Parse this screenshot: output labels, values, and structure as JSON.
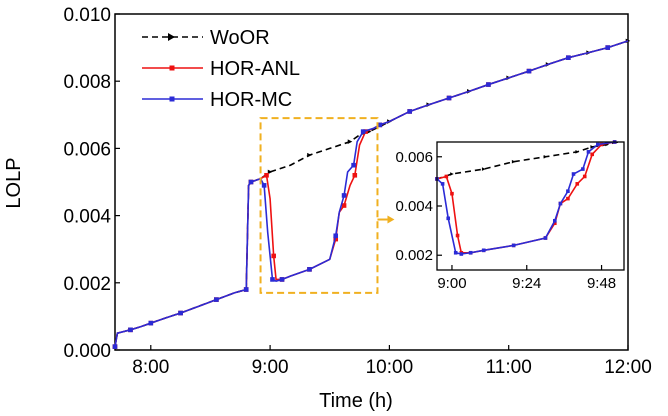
{
  "colors": {
    "woor": "#000000",
    "hor_anl": "#ee1111",
    "hor_mc": "#2b2bd6",
    "zoom_box": "#f0b020"
  },
  "chart_data": [
    {
      "id": "main",
      "type": "line",
      "title": "",
      "xlabel": "Time (h)",
      "ylabel": "LOLP",
      "xlim": [
        7.7,
        12
      ],
      "ylim": [
        0,
        0.01
      ],
      "xticks": [
        8,
        9,
        10,
        11,
        12
      ],
      "xtick_labels": [
        "8:00",
        "9:00",
        "10:00",
        "11:00",
        "12:00"
      ],
      "yticks": [
        0,
        0.002,
        0.004,
        0.006,
        0.008,
        0.01
      ],
      "ytick_labels": [
        "0.000",
        "0.002",
        "0.004",
        "0.006",
        "0.008",
        "0.010"
      ],
      "legend": {
        "position": "top-left"
      },
      "series": [
        {
          "name": "WoOR",
          "style": "dashed",
          "marker": "triangle-right",
          "x": [
            7.7,
            7.72,
            7.83,
            7.92,
            8.0,
            8.12,
            8.25,
            8.4,
            8.55,
            8.7,
            8.8,
            8.82,
            8.84,
            8.92,
            9.0,
            9.17,
            9.33,
            9.5,
            9.67,
            9.75,
            9.83,
            9.92,
            10.0,
            10.17,
            10.33,
            10.5,
            10.67,
            10.83,
            11.0,
            11.17,
            11.33,
            11.5,
            11.67,
            11.83,
            12.0
          ],
          "y": [
            0.0001,
            0.0005,
            0.0006,
            0.0007,
            0.0008,
            0.00095,
            0.0011,
            0.0013,
            0.0015,
            0.0017,
            0.0018,
            0.0049,
            0.005,
            0.0051,
            0.0053,
            0.0055,
            0.0058,
            0.006,
            0.0062,
            0.0064,
            0.0065,
            0.00665,
            0.0068,
            0.0071,
            0.0073,
            0.0075,
            0.0077,
            0.0079,
            0.0081,
            0.0083,
            0.0085,
            0.0087,
            0.00885,
            0.009,
            0.0092
          ]
        },
        {
          "name": "HOR-ANL",
          "style": "solid",
          "marker": "square",
          "x": [
            7.7,
            7.72,
            7.83,
            7.92,
            8.0,
            8.12,
            8.25,
            8.4,
            8.55,
            8.7,
            8.8,
            8.82,
            8.84,
            8.92,
            8.97,
            9.0,
            9.03,
            9.05,
            9.1,
            9.17,
            9.33,
            9.5,
            9.55,
            9.58,
            9.62,
            9.67,
            9.71,
            9.75,
            9.8,
            9.87,
            9.92,
            10.0,
            10.17,
            10.33,
            10.5,
            10.67,
            10.83,
            11.0,
            11.17,
            11.33,
            11.5,
            11.67,
            11.83,
            12.0
          ],
          "y": [
            0.0001,
            0.0005,
            0.0006,
            0.0007,
            0.0008,
            0.00095,
            0.0011,
            0.0013,
            0.0015,
            0.0017,
            0.0018,
            0.0049,
            0.005,
            0.0051,
            0.0052,
            0.0045,
            0.0028,
            0.0021,
            0.0021,
            0.0022,
            0.0024,
            0.0027,
            0.0033,
            0.0041,
            0.0043,
            0.0049,
            0.0052,
            0.0061,
            0.0065,
            0.0066,
            0.0067,
            0.0068,
            0.0071,
            0.0073,
            0.0075,
            0.0077,
            0.0079,
            0.0081,
            0.0083,
            0.0085,
            0.0087,
            0.00885,
            0.009,
            0.0092
          ]
        },
        {
          "name": "HOR-MC",
          "style": "solid",
          "marker": "square",
          "x": [
            7.7,
            7.72,
            7.83,
            7.92,
            8.0,
            8.12,
            8.25,
            8.4,
            8.55,
            8.7,
            8.8,
            8.82,
            8.84,
            8.92,
            8.95,
            8.98,
            9.02,
            9.05,
            9.1,
            9.17,
            9.33,
            9.5,
            9.55,
            9.58,
            9.62,
            9.65,
            9.7,
            9.73,
            9.78,
            9.87,
            9.92,
            10.0,
            10.17,
            10.33,
            10.5,
            10.67,
            10.83,
            11.0,
            11.17,
            11.33,
            11.5,
            11.67,
            11.83,
            12.0
          ],
          "y": [
            0.0001,
            0.0005,
            0.0006,
            0.0007,
            0.0008,
            0.00095,
            0.0011,
            0.0013,
            0.0015,
            0.0017,
            0.0018,
            0.0049,
            0.005,
            0.0051,
            0.0049,
            0.0035,
            0.0021,
            0.00205,
            0.0021,
            0.0022,
            0.0024,
            0.0027,
            0.0034,
            0.0041,
            0.0046,
            0.0053,
            0.0055,
            0.0062,
            0.0065,
            0.0066,
            0.0067,
            0.0068,
            0.0071,
            0.0073,
            0.0075,
            0.0077,
            0.0079,
            0.0081,
            0.0083,
            0.0085,
            0.0087,
            0.00885,
            0.009,
            0.0092
          ]
        }
      ],
      "zoom_region": {
        "x": [
          8.92,
          9.9
        ],
        "y": [
          0.0017,
          0.0069
        ]
      }
    },
    {
      "id": "inset",
      "type": "line",
      "xlim": [
        8.92,
        9.92
      ],
      "ylim": [
        0.0014,
        0.0066
      ],
      "xticks": [
        9.0,
        9.4,
        9.8
      ],
      "xtick_labels": [
        "9:00",
        "9:24",
        "9:48"
      ],
      "yticks": [
        0.002,
        0.004,
        0.006
      ],
      "ytick_labels": [
        "0.002",
        "0.004",
        "0.006"
      ],
      "series_ref": "main"
    }
  ]
}
